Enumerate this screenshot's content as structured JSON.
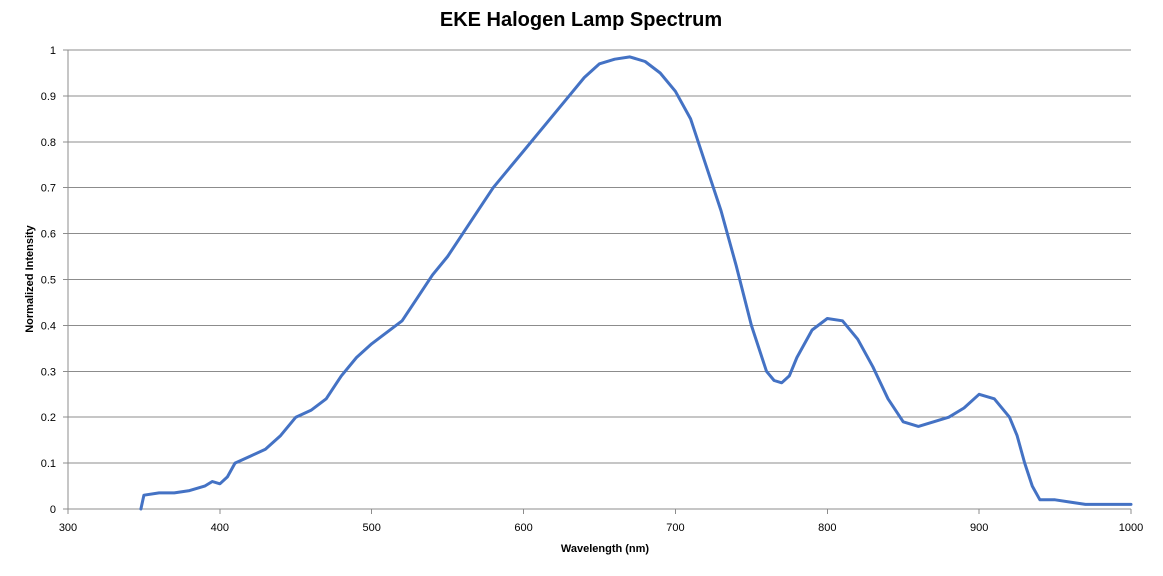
{
  "chart_data": {
    "type": "line",
    "title": "EKE Halogen Lamp Spectrum",
    "xlabel": "Wavelength (nm)",
    "ylabel": "Normalized Intensity",
    "xlim": [
      300,
      1000
    ],
    "ylim": [
      0,
      1
    ],
    "x_ticks": [
      300,
      400,
      500,
      600,
      700,
      800,
      900,
      1000
    ],
    "y_ticks": [
      0,
      0.1,
      0.2,
      0.3,
      0.4,
      0.5,
      0.6,
      0.7,
      0.8,
      0.9,
      1
    ],
    "y_tick_labels": [
      "0",
      "0.1",
      "0.2",
      "0.3",
      "0.4",
      "0.5",
      "0.6",
      "0.7",
      "0.8",
      "0.9",
      "1"
    ],
    "grid": true,
    "legend": "none",
    "series": [
      {
        "color": "#4472c4",
        "x": [
          348,
          350,
          360,
          370,
          380,
          390,
          395,
          400,
          405,
          410,
          420,
          430,
          440,
          450,
          460,
          470,
          480,
          490,
          500,
          510,
          520,
          530,
          540,
          550,
          560,
          570,
          580,
          590,
          600,
          610,
          620,
          630,
          640,
          650,
          660,
          670,
          680,
          690,
          700,
          710,
          720,
          730,
          740,
          750,
          760,
          765,
          770,
          775,
          780,
          790,
          800,
          810,
          820,
          830,
          840,
          850,
          860,
          870,
          880,
          890,
          900,
          910,
          920,
          925,
          930,
          935,
          940,
          950,
          960,
          970,
          980,
          990,
          1000
        ],
        "y": [
          0.0,
          0.03,
          0.035,
          0.035,
          0.04,
          0.05,
          0.06,
          0.055,
          0.07,
          0.1,
          0.115,
          0.13,
          0.16,
          0.2,
          0.215,
          0.24,
          0.29,
          0.33,
          0.36,
          0.385,
          0.41,
          0.46,
          0.51,
          0.55,
          0.6,
          0.65,
          0.7,
          0.74,
          0.78,
          0.82,
          0.86,
          0.9,
          0.94,
          0.97,
          0.98,
          0.985,
          0.975,
          0.95,
          0.91,
          0.85,
          0.75,
          0.65,
          0.53,
          0.4,
          0.3,
          0.28,
          0.275,
          0.29,
          0.33,
          0.39,
          0.415,
          0.41,
          0.37,
          0.31,
          0.24,
          0.19,
          0.18,
          0.19,
          0.2,
          0.22,
          0.25,
          0.24,
          0.2,
          0.16,
          0.1,
          0.05,
          0.02,
          0.02,
          0.015,
          0.01,
          0.01,
          0.01,
          0.01
        ]
      }
    ]
  }
}
